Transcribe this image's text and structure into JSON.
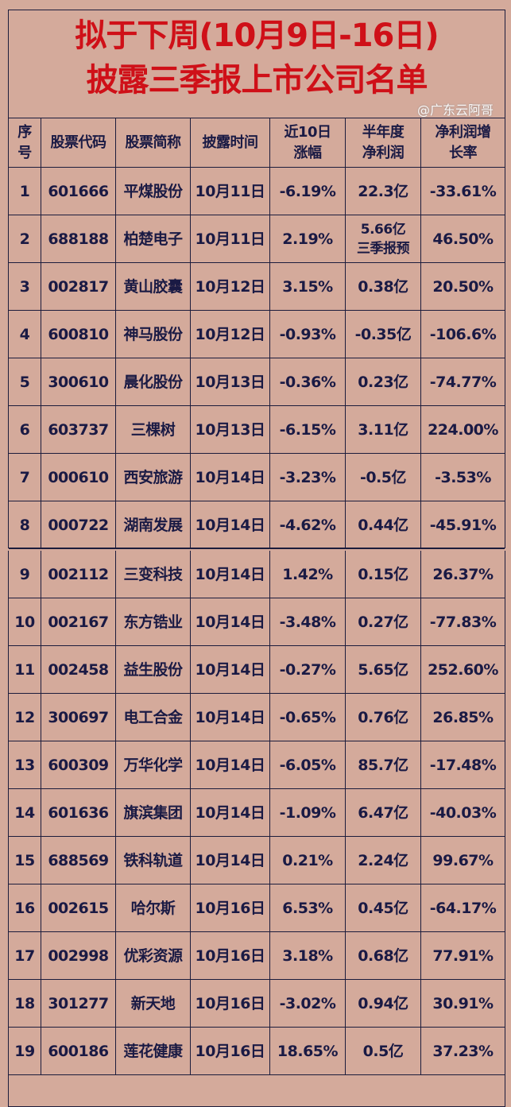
{
  "title": {
    "line1": "拟于下周(10月9日-16日)",
    "line2": "披露三季报上市公司名单"
  },
  "columns": [
    "序\n号",
    "股票代码",
    "股票简称",
    "披露时间",
    "近10日\n涨幅",
    "半年度\n净利润",
    "净利润增\n长率"
  ],
  "rows": [
    [
      "1",
      "601666",
      "平煤股份",
      "10月11日",
      "-6.19%",
      "22.3亿",
      "-33.61%"
    ],
    [
      "2",
      "688188",
      "柏楚电子",
      "10月11日",
      "2.19%",
      "5.66亿\n三季报预",
      "46.50%"
    ],
    [
      "3",
      "002817",
      "黄山胶囊",
      "10月12日",
      "3.15%",
      "0.38亿",
      "20.50%"
    ],
    [
      "4",
      "600810",
      "神马股份",
      "10月12日",
      "-0.93%",
      "-0.35亿",
      "-106.6%"
    ],
    [
      "5",
      "300610",
      "晨化股份",
      "10月13日",
      "-0.36%",
      "0.23亿",
      "-74.77%"
    ],
    [
      "6",
      "603737",
      "三棵树",
      "10月13日",
      "-6.15%",
      "3.11亿",
      "224.00%"
    ],
    [
      "7",
      "000610",
      "西安旅游",
      "10月14日",
      "-3.23%",
      "-0.5亿",
      "-3.53%"
    ],
    [
      "8",
      "000722",
      "湖南发展",
      "10月14日",
      "-4.62%",
      "0.44亿",
      "-45.91%"
    ],
    [
      "9",
      "002112",
      "三变科技",
      "10月14日",
      "1.42%",
      "0.15亿",
      "26.37%"
    ],
    [
      "10",
      "002167",
      "东方锆业",
      "10月14日",
      "-3.48%",
      "0.27亿",
      "-77.83%"
    ],
    [
      "11",
      "002458",
      "益生股份",
      "10月14日",
      "-0.27%",
      "5.65亿",
      "252.60%"
    ],
    [
      "12",
      "300697",
      "电工合金",
      "10月14日",
      "-0.65%",
      "0.76亿",
      "26.85%"
    ],
    [
      "13",
      "600309",
      "万华化学",
      "10月14日",
      "-6.05%",
      "85.7亿",
      "-17.48%"
    ],
    [
      "14",
      "601636",
      "旗滨集团",
      "10月14日",
      "-1.09%",
      "6.47亿",
      "-40.03%"
    ],
    [
      "15",
      "688569",
      "铁科轨道",
      "10月14日",
      "0.21%",
      "2.24亿",
      "99.67%"
    ],
    [
      "16",
      "002615",
      "哈尔斯",
      "10月16日",
      "6.53%",
      "0.45亿",
      "-64.17%"
    ],
    [
      "17",
      "002998",
      "优彩资源",
      "10月16日",
      "3.18%",
      "0.68亿",
      "77.91%"
    ],
    [
      "18",
      "301277",
      "新天地",
      "10月16日",
      "-3.02%",
      "0.94亿",
      "30.91%"
    ],
    [
      "19",
      "600186",
      "莲花健康",
      "10月16日",
      "18.65%",
      "0.5亿",
      "37.23%"
    ]
  ],
  "watermark": "@广东云阿哥",
  "colors": {
    "background": "#d4aa9b",
    "title": "#cf1018",
    "text": "#1a1a44"
  }
}
